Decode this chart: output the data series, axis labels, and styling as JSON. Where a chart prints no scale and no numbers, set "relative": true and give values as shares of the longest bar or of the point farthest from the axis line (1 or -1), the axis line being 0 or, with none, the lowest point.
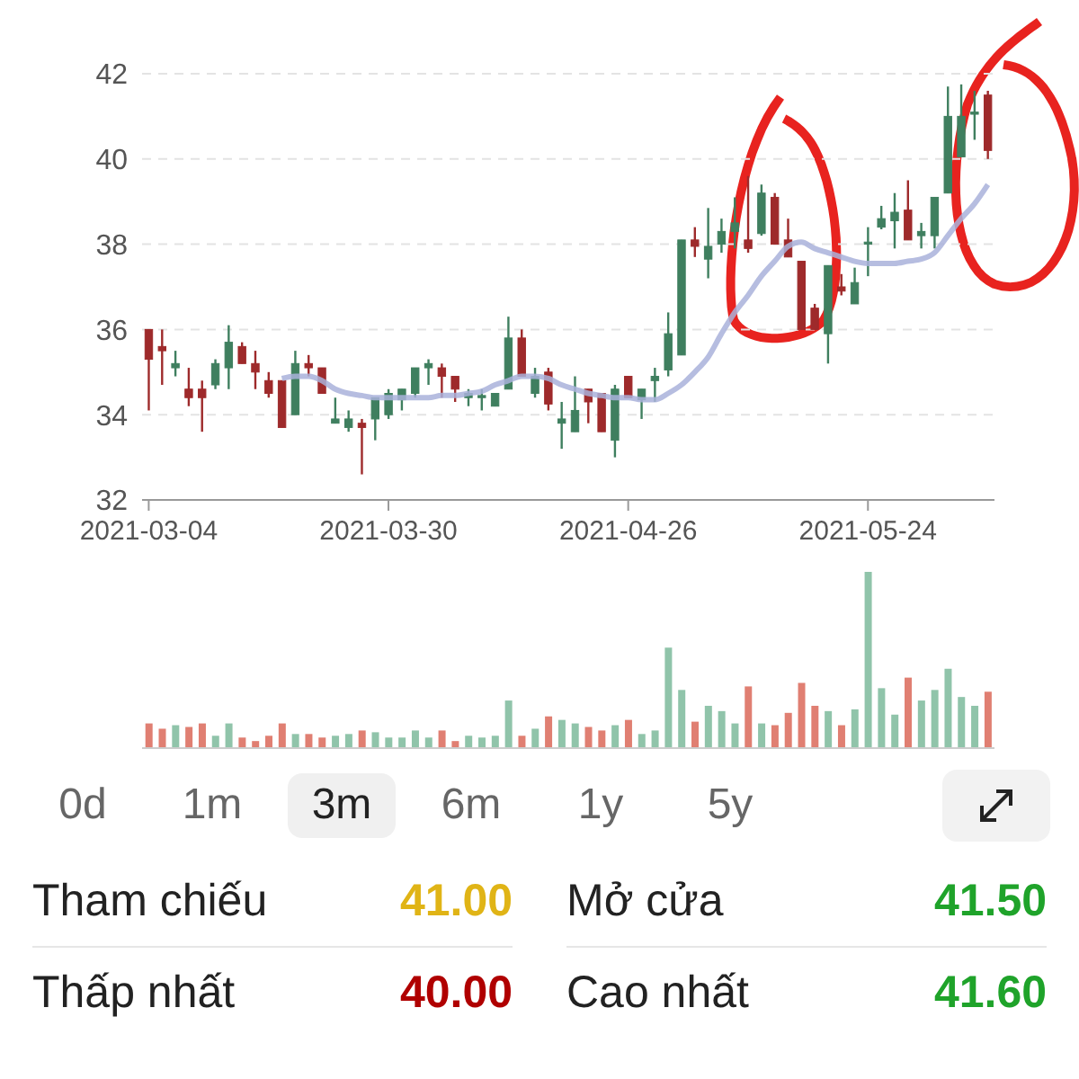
{
  "chart_data": [
    {
      "type": "candlestick",
      "categories": [
        "2021-03-04",
        null,
        null,
        null,
        null,
        null,
        null,
        null,
        null,
        null,
        null,
        null,
        null,
        null,
        null,
        null,
        null,
        null,
        "2021-03-30",
        null,
        null,
        null,
        null,
        null,
        null,
        null,
        null,
        null,
        null,
        null,
        null,
        null,
        null,
        null,
        null,
        null,
        "2021-04-26",
        null,
        null,
        null,
        null,
        null,
        null,
        null,
        null,
        null,
        null,
        null,
        null,
        null,
        null,
        null,
        null,
        null,
        "2021-05-24",
        null,
        null,
        null,
        null,
        null,
        null,
        null,
        null,
        null
      ],
      "ohlc": [
        [
          36.0,
          36.0,
          34.1,
          35.3
        ],
        [
          35.6,
          36.0,
          34.7,
          35.5
        ],
        [
          35.1,
          35.5,
          34.9,
          35.2
        ],
        [
          34.6,
          35.1,
          34.2,
          34.4
        ],
        [
          34.6,
          34.8,
          33.6,
          34.4
        ],
        [
          34.7,
          35.3,
          34.6,
          35.2
        ],
        [
          35.1,
          36.1,
          34.6,
          35.7
        ],
        [
          35.6,
          35.7,
          35.2,
          35.2
        ],
        [
          35.2,
          35.5,
          34.6,
          35.0
        ],
        [
          34.8,
          35.0,
          34.4,
          34.5
        ],
        [
          34.8,
          34.8,
          33.7,
          33.7
        ],
        [
          34.0,
          35.5,
          34.0,
          35.2
        ],
        [
          35.2,
          35.4,
          34.9,
          35.1
        ],
        [
          35.1,
          35.1,
          34.5,
          34.5
        ],
        [
          33.8,
          34.4,
          33.8,
          33.9
        ],
        [
          33.7,
          34.1,
          33.6,
          33.9
        ],
        [
          33.8,
          33.9,
          32.6,
          33.7
        ],
        [
          33.9,
          34.4,
          33.4,
          34.4
        ],
        [
          34.0,
          34.6,
          33.9,
          34.5
        ],
        [
          34.35,
          34.6,
          34.1,
          34.6
        ],
        [
          34.5,
          35.1,
          34.4,
          35.1
        ],
        [
          35.1,
          35.3,
          34.7,
          35.2
        ],
        [
          35.1,
          35.2,
          34.4,
          34.9
        ],
        [
          34.9,
          34.9,
          34.3,
          34.6
        ],
        [
          34.4,
          34.6,
          34.2,
          34.5
        ],
        [
          34.4,
          34.6,
          34.1,
          34.45
        ],
        [
          34.2,
          34.5,
          34.2,
          34.5
        ],
        [
          34.6,
          36.3,
          34.6,
          35.8
        ],
        [
          35.8,
          36.0,
          34.9,
          34.9
        ],
        [
          34.5,
          35.1,
          34.4,
          34.9
        ],
        [
          35.0,
          35.1,
          34.1,
          34.25
        ],
        [
          33.8,
          34.3,
          33.2,
          33.9
        ],
        [
          33.6,
          34.9,
          33.6,
          34.1
        ],
        [
          34.6,
          34.6,
          33.8,
          34.3
        ],
        [
          34.5,
          34.5,
          33.6,
          33.6
        ],
        [
          33.4,
          34.7,
          33.0,
          34.6
        ],
        [
          34.9,
          34.9,
          34.4,
          34.4
        ],
        [
          34.35,
          34.6,
          33.9,
          34.6
        ],
        [
          34.8,
          35.1,
          34.3,
          34.9
        ],
        [
          35.05,
          36.4,
          34.9,
          35.9
        ],
        [
          35.4,
          38.1,
          35.4,
          38.1
        ],
        [
          38.1,
          38.4,
          37.7,
          37.95
        ],
        [
          37.65,
          38.85,
          37.2,
          37.95
        ],
        [
          38.0,
          38.6,
          37.8,
          38.3
        ],
        [
          38.3,
          39.1,
          37.9,
          38.5
        ],
        [
          38.1,
          39.6,
          37.8,
          37.9
        ],
        [
          38.25,
          39.4,
          38.2,
          39.2
        ],
        [
          39.1,
          39.2,
          38.0,
          38.0
        ],
        [
          38.1,
          38.6,
          37.7,
          37.7
        ],
        [
          37.6,
          37.6,
          36.0,
          36.0
        ],
        [
          36.5,
          36.6,
          36.0,
          36.0
        ],
        [
          35.9,
          37.5,
          35.2,
          37.5
        ],
        [
          37.0,
          37.3,
          36.8,
          36.9
        ],
        [
          36.6,
          37.45,
          36.6,
          37.1
        ],
        [
          38.0,
          38.4,
          37.25,
          38.05
        ],
        [
          38.4,
          38.9,
          38.35,
          38.6
        ],
        [
          38.55,
          39.2,
          37.9,
          38.75
        ],
        [
          38.8,
          39.5,
          38.1,
          38.1
        ],
        [
          38.2,
          38.5,
          37.9,
          38.3
        ],
        [
          38.2,
          39.1,
          37.9,
          39.1
        ],
        [
          39.2,
          41.7,
          39.2,
          41.0
        ],
        [
          40.05,
          41.75,
          40.05,
          41.0
        ],
        [
          41.05,
          41.6,
          40.45,
          41.1
        ],
        [
          41.5,
          41.6,
          40.0,
          40.2
        ]
      ],
      "colors": [
        "#9e2a2b",
        "#9e2a2b",
        "#3f7f5f",
        "#9e2a2b",
        "#9e2a2b",
        "#3f7f5f",
        "#3f7f5f",
        "#9e2a2b",
        "#9e2a2b",
        "#9e2a2b",
        "#9e2a2b",
        "#3f7f5f",
        "#9e2a2b",
        "#9e2a2b",
        "#3f7f5f",
        "#3f7f5f",
        "#9e2a2b",
        "#3f7f5f",
        "#3f7f5f",
        "#3f7f5f",
        "#3f7f5f",
        "#3f7f5f",
        "#9e2a2b",
        "#9e2a2b",
        "#3f7f5f",
        "#3f7f5f",
        "#3f7f5f",
        "#3f7f5f",
        "#9e2a2b",
        "#3f7f5f",
        "#9e2a2b",
        "#3f7f5f",
        "#3f7f5f",
        "#9e2a2b",
        "#9e2a2b",
        "#3f7f5f",
        "#9e2a2b",
        "#3f7f5f",
        "#3f7f5f",
        "#3f7f5f",
        "#3f7f5f",
        "#9e2a2b",
        "#3f7f5f",
        "#3f7f5f",
        "#3f7f5f",
        "#9e2a2b",
        "#3f7f5f",
        "#9e2a2b",
        "#9e2a2b",
        "#9e2a2b",
        "#9e2a2b",
        "#3f7f5f",
        "#9e2a2b",
        "#3f7f5f",
        "#3f7f5f",
        "#3f7f5f",
        "#3f7f5f",
        "#9e2a2b",
        "#3f7f5f",
        "#3f7f5f",
        "#3f7f5f",
        "#3f7f5f",
        "#3f7f5f",
        "#9e2a2b"
      ],
      "series": [
        {
          "type": "line",
          "color": "#a9b2da",
          "values": [
            null,
            null,
            null,
            null,
            null,
            null,
            null,
            null,
            null,
            null,
            34.85,
            34.9,
            34.9,
            34.8,
            34.6,
            34.5,
            34.45,
            34.4,
            34.4,
            34.4,
            34.4,
            34.4,
            34.45,
            34.45,
            34.5,
            34.55,
            34.7,
            34.8,
            34.9,
            34.9,
            34.85,
            34.7,
            34.6,
            34.5,
            34.45,
            34.4,
            34.4,
            34.35,
            34.35,
            34.5,
            34.7,
            35.0,
            35.35,
            35.9,
            36.4,
            36.8,
            37.25,
            37.6,
            37.95,
            38.05,
            37.9,
            37.8,
            37.7,
            37.6,
            37.55,
            37.55,
            37.55,
            37.6,
            37.65,
            37.8,
            38.2,
            38.6,
            38.95,
            39.4
          ]
        }
      ],
      "ylim": [
        32,
        42
      ],
      "yticks": [
        32,
        34,
        36,
        38,
        40,
        42
      ],
      "grid": "y"
    },
    {
      "type": "bar",
      "relative": true,
      "categories": [
        null,
        null,
        null,
        null,
        null,
        null,
        null,
        null,
        null,
        null,
        null,
        null,
        null,
        null,
        null,
        null,
        null,
        null,
        null,
        null,
        null,
        null,
        null,
        null,
        null,
        null,
        null,
        null,
        null,
        null,
        null,
        null,
        null,
        null,
        null,
        null,
        null,
        null,
        null,
        null,
        null,
        null,
        null,
        null,
        null,
        null,
        null,
        null,
        null,
        null,
        null,
        null,
        null,
        null,
        null,
        null,
        null,
        null,
        null,
        null,
        null,
        null,
        null,
        null
      ],
      "values": [
        0.14,
        0.11,
        0.13,
        0.12,
        0.14,
        0.07,
        0.14,
        0.06,
        0.04,
        0.07,
        0.14,
        0.08,
        0.08,
        0.06,
        0.07,
        0.08,
        0.1,
        0.09,
        0.06,
        0.06,
        0.1,
        0.06,
        0.1,
        0.04,
        0.07,
        0.06,
        0.07,
        0.27,
        0.07,
        0.11,
        0.18,
        0.16,
        0.14,
        0.12,
        0.1,
        0.13,
        0.16,
        0.08,
        0.1,
        0.57,
        0.33,
        0.15,
        0.24,
        0.21,
        0.14,
        0.35,
        0.14,
        0.13,
        0.2,
        0.37,
        0.24,
        0.21,
        0.13,
        0.22,
        1,
        0.34,
        0.19,
        0.4,
        0.27,
        0.33,
        0.45,
        0.29,
        0.24,
        0.32
      ],
      "colors": [
        "#e07f72",
        "#e07f72",
        "#90c4aa",
        "#e07f72",
        "#e07f72",
        "#90c4aa",
        "#90c4aa",
        "#e07f72",
        "#e07f72",
        "#e07f72",
        "#e07f72",
        "#90c4aa",
        "#e07f72",
        "#e07f72",
        "#90c4aa",
        "#90c4aa",
        "#e07f72",
        "#90c4aa",
        "#90c4aa",
        "#90c4aa",
        "#90c4aa",
        "#90c4aa",
        "#e07f72",
        "#e07f72",
        "#90c4aa",
        "#90c4aa",
        "#90c4aa",
        "#90c4aa",
        "#e07f72",
        "#90c4aa",
        "#e07f72",
        "#90c4aa",
        "#90c4aa",
        "#e07f72",
        "#e07f72",
        "#90c4aa",
        "#e07f72",
        "#90c4aa",
        "#90c4aa",
        "#90c4aa",
        "#90c4aa",
        "#e07f72",
        "#90c4aa",
        "#90c4aa",
        "#90c4aa",
        "#e07f72",
        "#90c4aa",
        "#e07f72",
        "#e07f72",
        "#e07f72",
        "#e07f72",
        "#90c4aa",
        "#e07f72",
        "#90c4aa",
        "#90c4aa",
        "#90c4aa",
        "#90c4aa",
        "#e07f72",
        "#90c4aa",
        "#90c4aa",
        "#90c4aa",
        "#90c4aa",
        "#90c4aa",
        "#e07f72"
      ]
    },
    {
      "type": "other",
      "annotations": [
        "0d",
        "1m",
        "3m",
        "6m",
        "1y",
        "5y",
        "Tham chiếu",
        "41.00",
        "Mở cửa",
        "41.50",
        "Thấp nhất",
        "40.00",
        "Cao nhất",
        "41.60"
      ]
    }
  ]
}
